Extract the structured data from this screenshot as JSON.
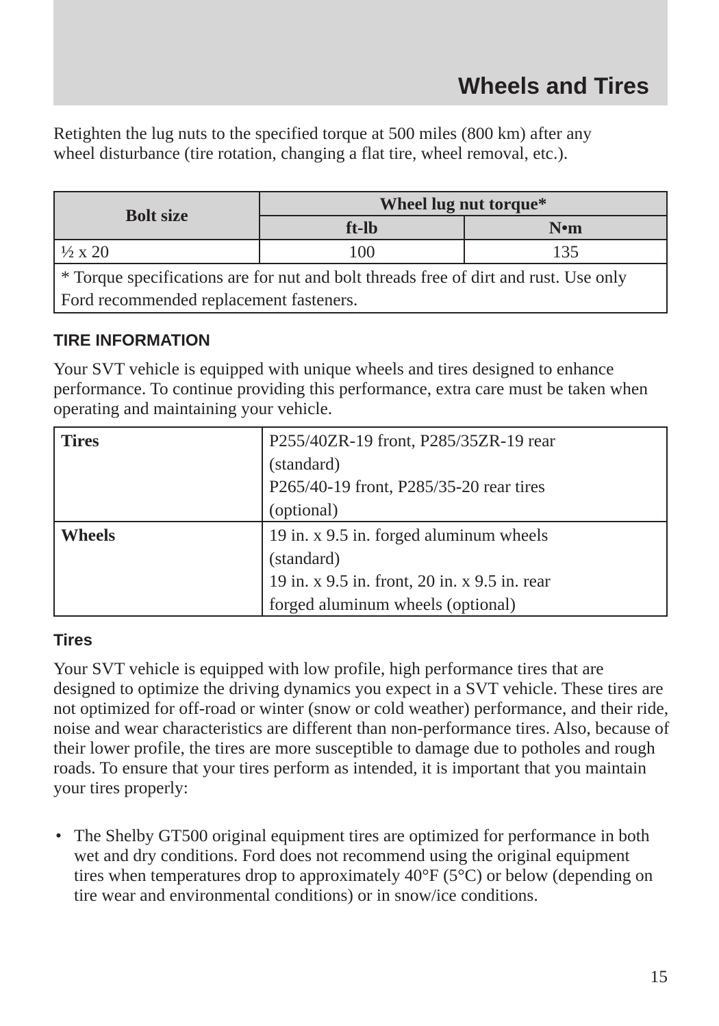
{
  "header": {
    "title": "Wheels and Tires"
  },
  "intro": "Retighten the lug nuts to the specified torque at 500 miles (800 km) after any wheel disturbance (tire rotation, changing a flat tire, wheel removal, etc.).",
  "torque_table": {
    "col_bolt": "Bolt size",
    "col_torque": "Wheel lug nut torque*",
    "sub_ftlb": "ft-lb",
    "sub_nm": "N•m",
    "row": {
      "bolt": "½ x 20",
      "ftlb": "100",
      "nm": "135"
    },
    "note": "* Torque specifications are for nut and bolt threads free of dirt and rust. Use only Ford recommended replacement fasteners."
  },
  "tire_info": {
    "heading": "TIRE INFORMATION",
    "text": "Your SVT vehicle is equipped with unique wheels and tires designed to enhance performance. To continue providing this performance, extra care must be taken when operating and maintaining your vehicle."
  },
  "spec_table": [
    {
      "label": "Tires",
      "lines": [
        "P255/40ZR-19 front, P285/35ZR-19 rear",
        "(standard)",
        "P265/40-19 front, P285/35-20 rear tires",
        "(optional)"
      ]
    },
    {
      "label": "Wheels",
      "lines": [
        "19 in. x 9.5 in. forged aluminum wheels",
        "(standard)",
        "19 in. x 9.5 in. front, 20 in. x 9.5 in. rear",
        "forged aluminum wheels (optional)"
      ]
    }
  ],
  "tires": {
    "heading": "Tires",
    "text": "Your SVT vehicle is equipped with low profile, high performance tires that are designed to optimize the driving dynamics you expect in a SVT vehicle. These tires are not optimized for off-road or winter (snow or cold weather) performance, and their ride, noise and wear characteristics are different than non-performance tires. Also, because of their lower profile, the tires are more susceptible to damage due to potholes and rough roads. To ensure that your tires perform as intended, it is important that you maintain your tires properly:",
    "bullets": [
      "The Shelby GT500 original equipment tires are optimized for performance in both wet and dry conditions. Ford does not recommend using the original equipment tires when temperatures drop to approximately 40°F (5°C) or below (depending on tire wear and environmental conditions) or in snow/ice conditions."
    ]
  },
  "page_number": "15"
}
